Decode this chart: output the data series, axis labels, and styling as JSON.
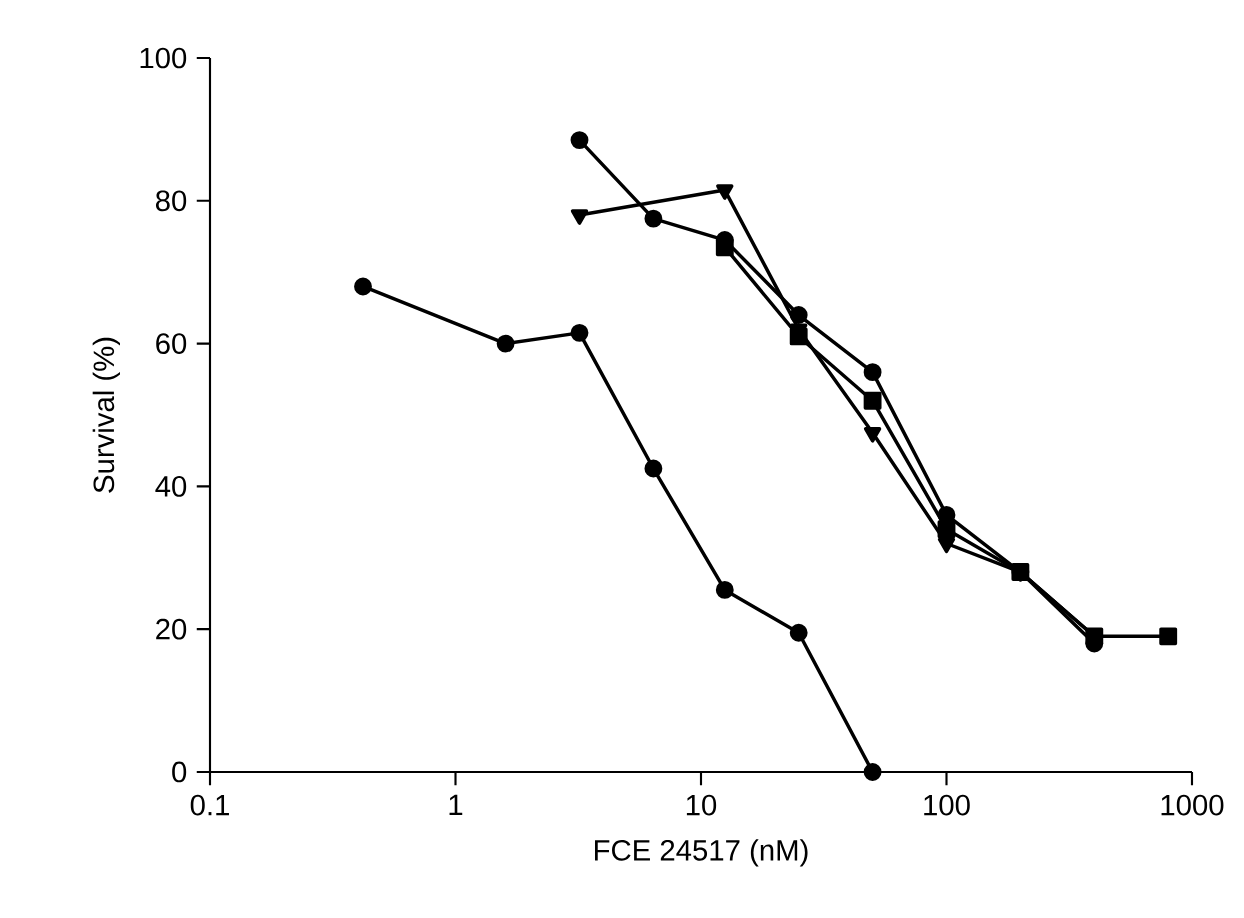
{
  "chart_data": {
    "type": "line",
    "xlabel": "FCE 24517 (nM)",
    "ylabel": "Survival (%)",
    "log": "x",
    "xlim": [
      0.1,
      1000
    ],
    "xticks": [
      0.1,
      1,
      10,
      100,
      1000
    ],
    "ylim": [
      0,
      100
    ],
    "yticks": [
      0,
      20,
      40,
      60,
      80,
      100
    ],
    "grid": false,
    "line_style": "solid",
    "series": [
      {
        "color": "#000000",
        "marker": "circle",
        "x": [
          0.42,
          1.6,
          3.2,
          6.4,
          12.5,
          25,
          50
        ],
        "values": [
          68,
          60,
          61.5,
          42.5,
          25.5,
          19.5,
          0
        ]
      },
      {
        "color": "#000000",
        "marker": "circle",
        "x": [
          3.2,
          6.4,
          12.5,
          25,
          50,
          100,
          200,
          400
        ],
        "values": [
          88.5,
          77.5,
          74.5,
          64,
          56,
          36,
          28,
          18
        ]
      },
      {
        "color": "#000000",
        "marker": "triangle",
        "x": [
          3.2,
          12.5,
          25,
          50,
          100,
          200,
          400
        ],
        "values": [
          78,
          81.5,
          62,
          47.5,
          32,
          28,
          19
        ]
      },
      {
        "color": "#000000",
        "marker": "square",
        "x": [
          12.5,
          25,
          50,
          100,
          200,
          400,
          800
        ],
        "values": [
          73.5,
          61,
          52,
          34,
          28,
          19,
          19
        ]
      }
    ]
  }
}
